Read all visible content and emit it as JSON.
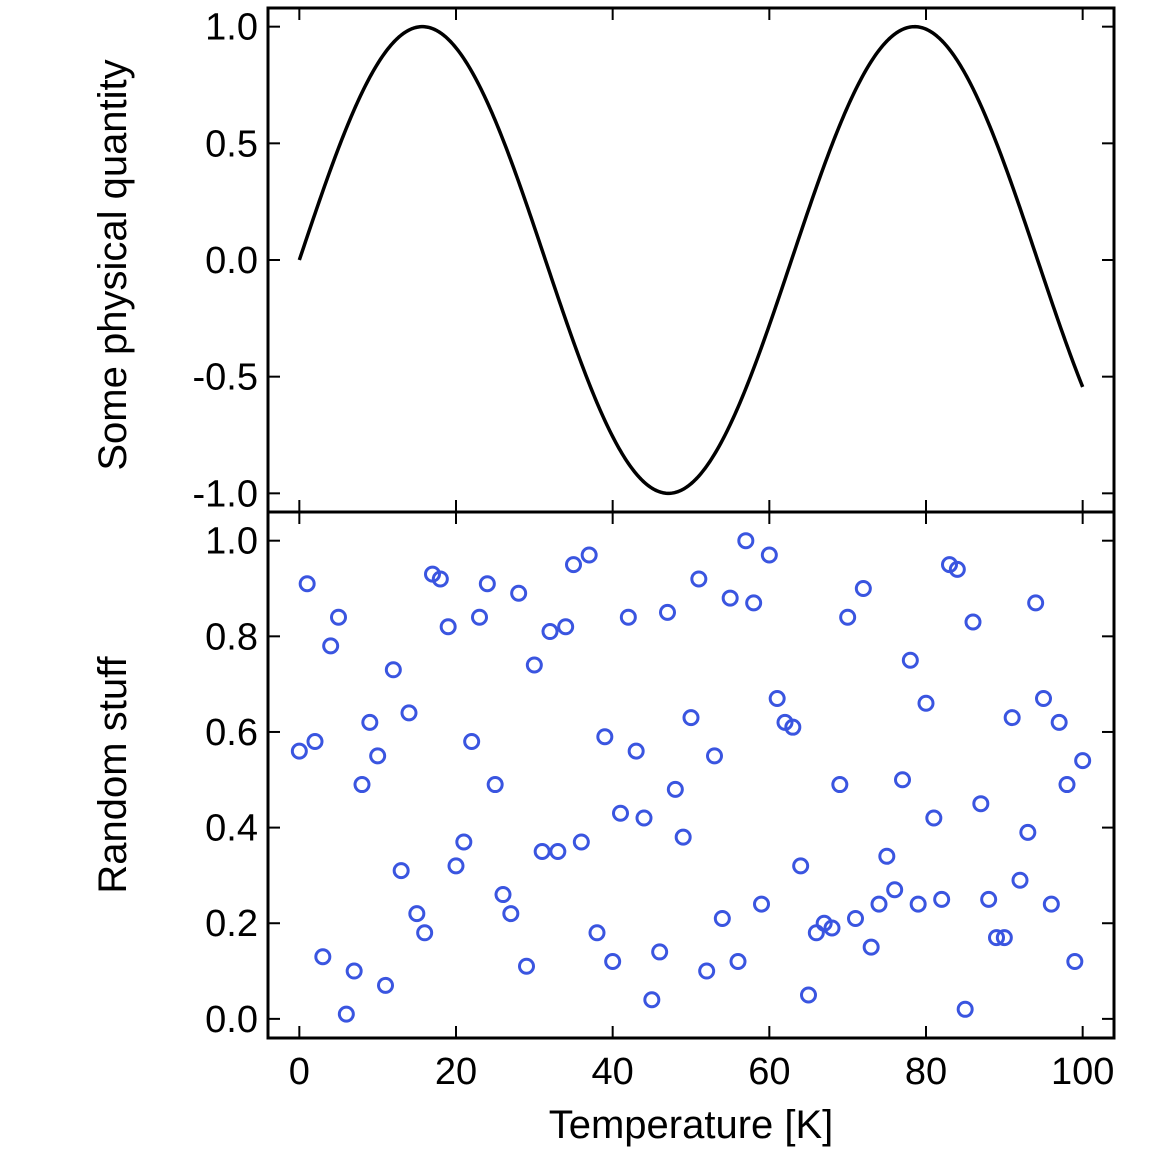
{
  "chart_data": [
    {
      "type": "line",
      "title": "",
      "xlabel": "",
      "ylabel": "Some physical quantity",
      "xlim": [
        -4,
        104
      ],
      "ylim": [
        -1.08,
        1.08
      ],
      "x_ticks": [
        0,
        20,
        40,
        60,
        80,
        100
      ],
      "y_ticks": [
        -1.0,
        -0.5,
        0.0,
        0.5,
        1.0
      ],
      "y_tick_labels": [
        "-1.0",
        "-0.5",
        "0.0",
        "0.5",
        "1.0"
      ],
      "grid": false,
      "line_color": "#000000",
      "series": [
        {
          "function": "sin(0.1 * x)",
          "x_range": [
            0,
            100
          ],
          "x": [
            0,
            5,
            10,
            15.7,
            20,
            25,
            30,
            35,
            40,
            47.1,
            55,
            60,
            65,
            70,
            78.5,
            85,
            90,
            95,
            100
          ],
          "values": [
            0.0,
            0.479,
            0.841,
            1.0,
            0.909,
            0.598,
            0.141,
            -0.351,
            -0.757,
            -1.0,
            -0.706,
            -0.279,
            0.215,
            0.657,
            1.0,
            0.798,
            0.412,
            -0.075,
            -0.544
          ]
        }
      ]
    },
    {
      "type": "scatter",
      "title": "",
      "xlabel": "Temperature [K]",
      "ylabel": "Random stuff",
      "xlim": [
        -4,
        104
      ],
      "ylim": [
        -0.04,
        1.06
      ],
      "x_ticks": [
        0,
        20,
        40,
        60,
        80,
        100
      ],
      "x_tick_labels": [
        "0",
        "20",
        "40",
        "60",
        "80",
        "100"
      ],
      "y_ticks": [
        0.0,
        0.2,
        0.4,
        0.6,
        0.8,
        1.0
      ],
      "y_tick_labels": [
        "0.0",
        "0.2",
        "0.4",
        "0.6",
        "0.8",
        "1.0"
      ],
      "grid": false,
      "marker": "open-circle",
      "marker_color": "#3a55e0",
      "series": [
        {
          "x": [
            0,
            1,
            2,
            3,
            4,
            5,
            6,
            7,
            8,
            9,
            10,
            11,
            12,
            13,
            14,
            15,
            16,
            17,
            18,
            19,
            20,
            21,
            22,
            23,
            24,
            25,
            26,
            27,
            28,
            29,
            30,
            31,
            32,
            33,
            34,
            35,
            36,
            37,
            38,
            39,
            40,
            41,
            42,
            43,
            44,
            45,
            46,
            47,
            48,
            49,
            50,
            51,
            52,
            53,
            54,
            55,
            56,
            57,
            58,
            59,
            60,
            61,
            62,
            63,
            64,
            65,
            66,
            67,
            68,
            69,
            70,
            71,
            72,
            73,
            74,
            75,
            76,
            77,
            78,
            79,
            80,
            81,
            82,
            83,
            84,
            85,
            86,
            87,
            88,
            89,
            90,
            91,
            92,
            93,
            94,
            95,
            96,
            97,
            98,
            99,
            100
          ],
          "values": [
            0.56,
            0.91,
            0.58,
            0.13,
            0.78,
            0.84,
            0.01,
            0.1,
            0.49,
            0.62,
            0.55,
            0.07,
            0.73,
            0.31,
            0.64,
            0.22,
            0.18,
            0.93,
            0.92,
            0.82,
            0.32,
            0.37,
            0.58,
            0.84,
            0.91,
            0.49,
            0.26,
            0.22,
            0.89,
            0.11,
            0.74,
            0.35,
            0.81,
            0.35,
            0.82,
            0.95,
            0.37,
            0.97,
            0.18,
            0.59,
            0.12,
            0.43,
            0.84,
            0.56,
            0.42,
            0.04,
            0.14,
            0.85,
            0.48,
            0.38,
            0.63,
            0.92,
            0.1,
            0.55,
            0.21,
            0.88,
            0.12,
            1.0,
            0.87,
            0.24,
            0.97,
            0.67,
            0.62,
            0.61,
            0.32,
            0.05,
            0.18,
            0.2,
            0.19,
            0.49,
            0.84,
            0.21,
            0.9,
            0.15,
            0.24,
            0.34,
            0.27,
            0.5,
            0.75,
            0.24,
            0.66,
            0.42,
            0.25,
            0.95,
            0.94,
            0.02,
            0.83,
            0.45,
            0.25,
            0.17,
            0.17,
            0.63,
            0.29,
            0.39,
            0.87,
            0.67,
            0.24,
            0.62,
            0.49,
            0.12,
            0.54
          ]
        }
      ]
    }
  ]
}
